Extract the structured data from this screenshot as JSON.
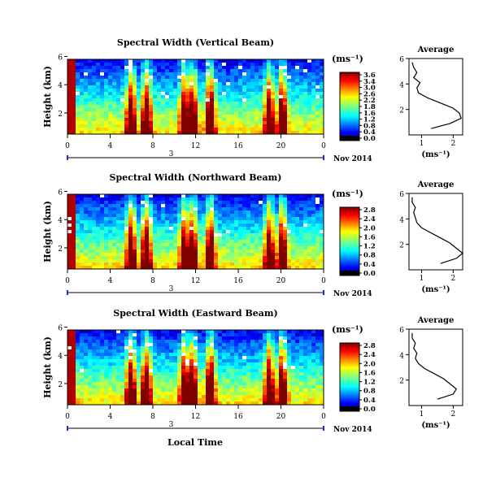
{
  "figure": {
    "x_axis_label": "Local Time",
    "date_line_text": "3",
    "date_right_text": "Nov 2014"
  },
  "chart_data": [
    {
      "type": "heatmap",
      "title": "Spectral Width (Vertical Beam)",
      "ylabel": "Height (km)",
      "xticks": [
        "0",
        "4",
        "8",
        "12",
        "16",
        "20",
        "0"
      ],
      "xlim": [
        0,
        24
      ],
      "ylim": [
        0.5,
        5.8
      ],
      "yticks": [
        "6",
        "4",
        "2"
      ],
      "colorbar": {
        "unit": "(ms⁻¹)",
        "ticks": [
          "3.6",
          "3.4",
          "3.0",
          "2.6",
          "2.2",
          "1.8",
          "1.6",
          "1.2",
          "0.8",
          "0.4",
          "0.0"
        ],
        "range": [
          0.0,
          3.6
        ]
      },
      "profile": {
        "title": "Average",
        "xlabel": "(ms⁻¹)",
        "xticks": [
          "1",
          "2"
        ],
        "xlim": [
          0.6,
          2.3
        ],
        "yticks": [
          "6",
          "4",
          "2"
        ],
        "ylim": [
          0,
          6
        ],
        "heights": [
          0.5,
          0.9,
          1.3,
          1.7,
          2.1,
          2.5,
          2.9,
          3.3,
          3.7,
          4.1,
          4.5,
          4.9,
          5.3,
          5.7
        ],
        "values": [
          1.3,
          1.9,
          2.25,
          2.2,
          2.0,
          1.6,
          1.2,
          0.9,
          0.85,
          0.95,
          0.75,
          0.85,
          0.75,
          0.7
        ]
      }
    },
    {
      "type": "heatmap",
      "title": "Spectral Width (Northward Beam)",
      "ylabel": "Height (km)",
      "xticks": [
        "0",
        "4",
        "8",
        "12",
        "16",
        "20",
        "0"
      ],
      "xlim": [
        0,
        24
      ],
      "ylim": [
        0.5,
        5.8
      ],
      "yticks": [
        "6",
        "4",
        "2"
      ],
      "colorbar": {
        "unit": "(ms⁻¹)",
        "ticks": [
          "2.8",
          "2.4",
          "2.0",
          "1.6",
          "1.2",
          "0.8",
          "0.4",
          "0.0"
        ],
        "range": [
          0.0,
          2.8
        ]
      },
      "profile": {
        "title": "Average",
        "xlabel": "(ms⁻¹)",
        "xticks": [
          "1",
          "2"
        ],
        "xlim": [
          0.6,
          2.3
        ],
        "yticks": [
          "6",
          "4",
          "2"
        ],
        "ylim": [
          0,
          6
        ],
        "heights": [
          0.5,
          0.9,
          1.3,
          1.7,
          2.1,
          2.5,
          2.9,
          3.3,
          3.7,
          4.1,
          4.5,
          4.9,
          5.3,
          5.7
        ],
        "values": [
          1.6,
          2.1,
          2.3,
          2.1,
          1.9,
          1.6,
          1.3,
          1.0,
          0.85,
          0.8,
          0.75,
          0.8,
          0.7,
          0.7
        ]
      }
    },
    {
      "type": "heatmap",
      "title": "Spectral Width (Eastward Beam)",
      "ylabel": "Height (km)",
      "xticks": [
        "0",
        "4",
        "8",
        "12",
        "16",
        "20",
        "0"
      ],
      "xlim": [
        0,
        24
      ],
      "ylim": [
        0.5,
        5.8
      ],
      "yticks": [
        "6",
        "4",
        "2"
      ],
      "colorbar": {
        "unit": "(ms⁻¹)",
        "ticks": [
          "2.8",
          "2.4",
          "2.0",
          "1.6",
          "1.2",
          "0.8",
          "0.4",
          "0.0"
        ],
        "range": [
          0.0,
          2.8
        ]
      },
      "profile": {
        "title": "Average",
        "xlabel": "(ms⁻¹)",
        "xticks": [
          "1",
          "2"
        ],
        "xlim": [
          0.6,
          2.3
        ],
        "yticks": [
          "6",
          "4",
          "2"
        ],
        "ylim": [
          0,
          6
        ],
        "heights": [
          0.5,
          0.9,
          1.3,
          1.7,
          2.1,
          2.5,
          2.9,
          3.3,
          3.7,
          4.1,
          4.5,
          4.9,
          5.3,
          5.7
        ],
        "values": [
          1.5,
          2.0,
          2.1,
          1.9,
          1.7,
          1.4,
          1.1,
          0.9,
          0.8,
          0.85,
          0.75,
          0.8,
          0.7,
          0.7
        ]
      }
    }
  ]
}
